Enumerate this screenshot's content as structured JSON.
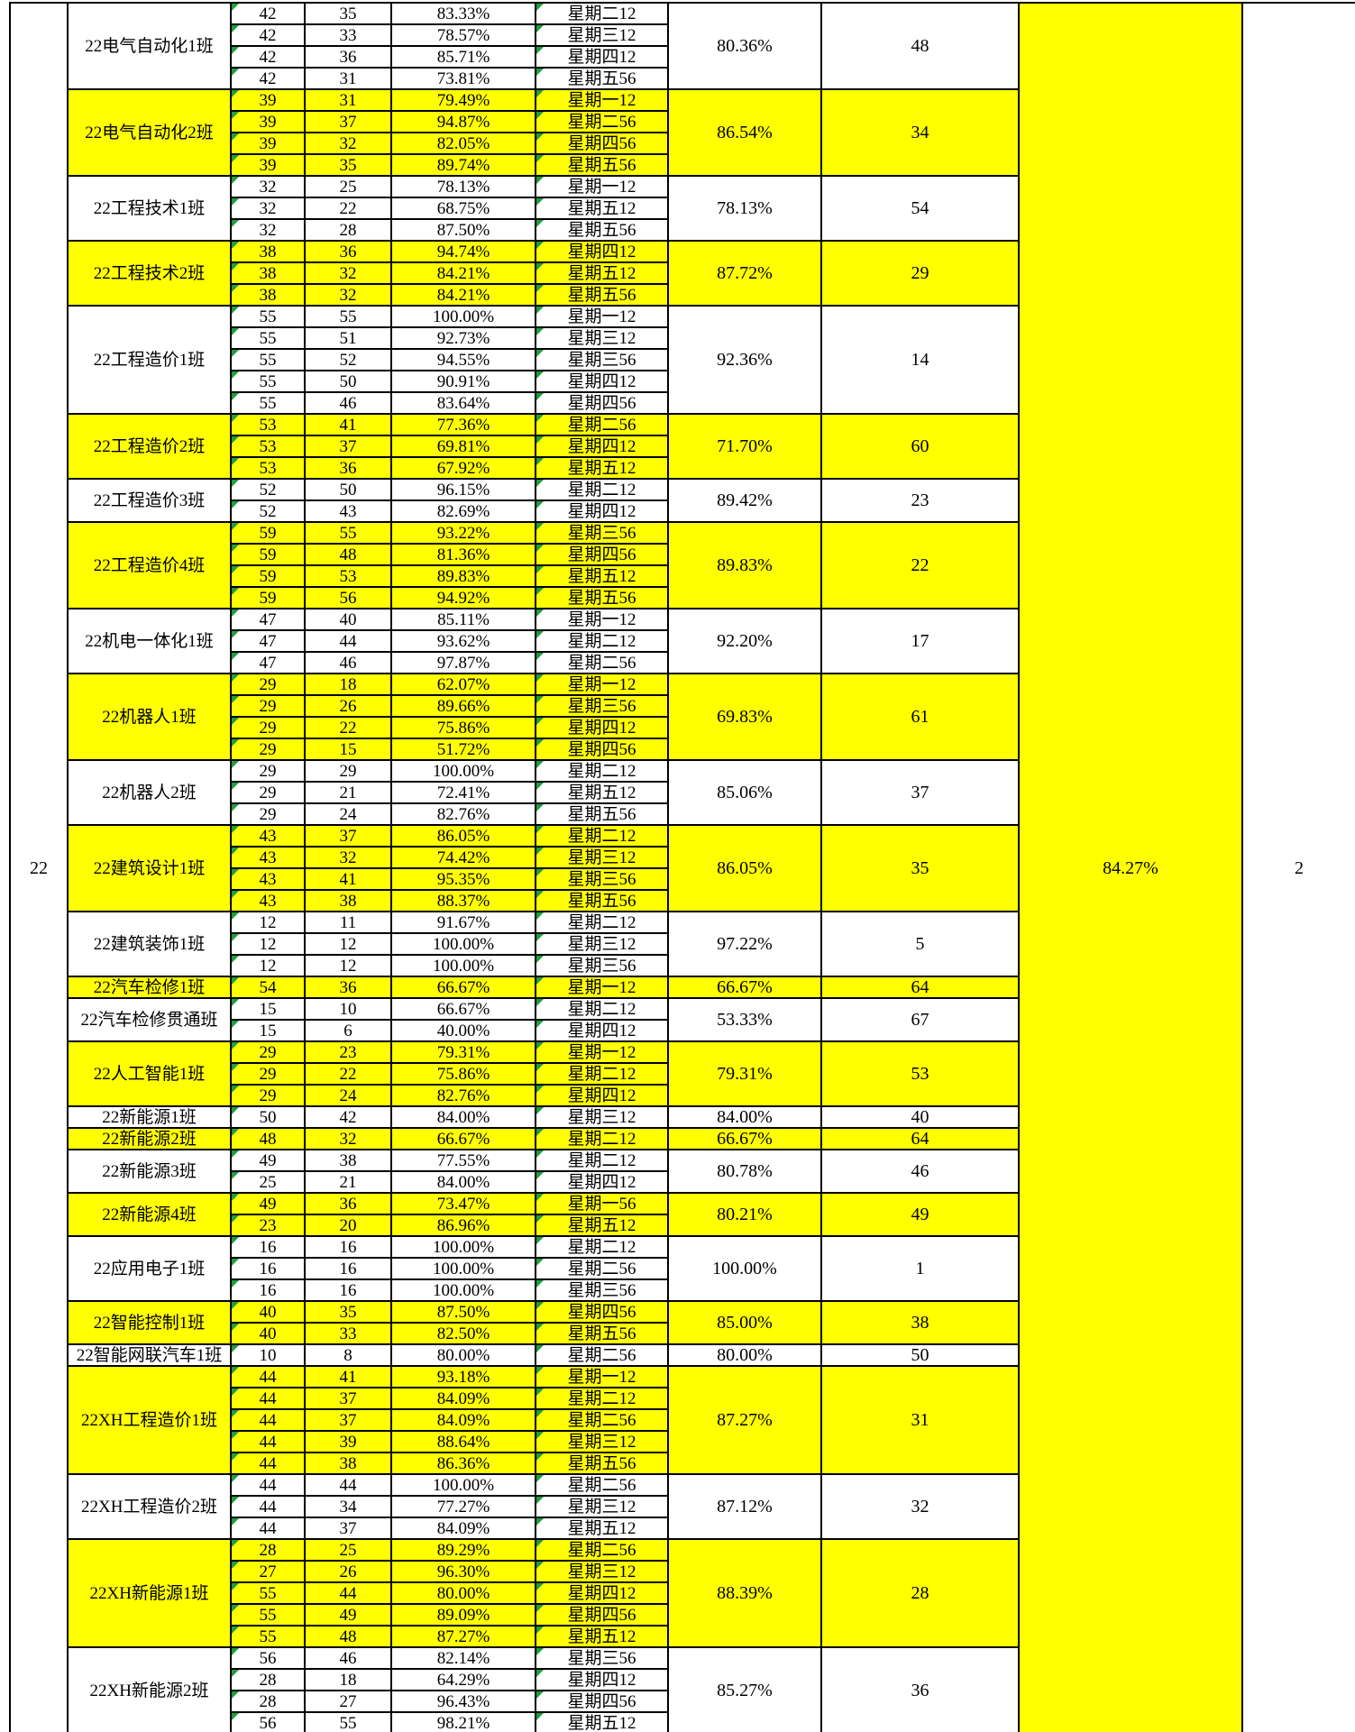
{
  "colors": {
    "highlight": "#FFFF00",
    "grid_line": "#000000",
    "error_indicator": "#1F9D40",
    "text": "#000000",
    "background": "#FFFFFF"
  },
  "grade_row": {
    "grade": "22",
    "grade_avg": "84.27%",
    "grade_rank": "2"
  },
  "table": {
    "blocks": [
      {
        "class": "22电气自动化1班",
        "highlighted": false,
        "avg": "80.36%",
        "rank": "48",
        "sessions": [
          {
            "total": "42",
            "attended": "35",
            "rate": "83.33%",
            "slot": "星期二12"
          },
          {
            "total": "42",
            "attended": "33",
            "rate": "78.57%",
            "slot": "星期三12"
          },
          {
            "total": "42",
            "attended": "36",
            "rate": "85.71%",
            "slot": "星期四12"
          },
          {
            "total": "42",
            "attended": "31",
            "rate": "73.81%",
            "slot": "星期五56"
          }
        ]
      },
      {
        "class": "22电气自动化2班",
        "highlighted": true,
        "avg": "86.54%",
        "rank": "34",
        "sessions": [
          {
            "total": "39",
            "attended": "31",
            "rate": "79.49%",
            "slot": "星期一12"
          },
          {
            "total": "39",
            "attended": "37",
            "rate": "94.87%",
            "slot": "星期二56"
          },
          {
            "total": "39",
            "attended": "32",
            "rate": "82.05%",
            "slot": "星期四56"
          },
          {
            "total": "39",
            "attended": "35",
            "rate": "89.74%",
            "slot": "星期五56"
          }
        ]
      },
      {
        "class": "22工程技术1班",
        "highlighted": false,
        "avg": "78.13%",
        "rank": "54",
        "sessions": [
          {
            "total": "32",
            "attended": "25",
            "rate": "78.13%",
            "slot": "星期一12"
          },
          {
            "total": "32",
            "attended": "22",
            "rate": "68.75%",
            "slot": "星期五12"
          },
          {
            "total": "32",
            "attended": "28",
            "rate": "87.50%",
            "slot": "星期五56"
          }
        ]
      },
      {
        "class": "22工程技术2班",
        "highlighted": true,
        "avg": "87.72%",
        "rank": "29",
        "sessions": [
          {
            "total": "38",
            "attended": "36",
            "rate": "94.74%",
            "slot": "星期四12"
          },
          {
            "total": "38",
            "attended": "32",
            "rate": "84.21%",
            "slot": "星期五12"
          },
          {
            "total": "38",
            "attended": "32",
            "rate": "84.21%",
            "slot": "星期五56"
          }
        ]
      },
      {
        "class": "22工程造价1班",
        "highlighted": false,
        "avg": "92.36%",
        "rank": "14",
        "sessions": [
          {
            "total": "55",
            "attended": "55",
            "rate": "100.00%",
            "slot": "星期一12"
          },
          {
            "total": "55",
            "attended": "51",
            "rate": "92.73%",
            "slot": "星期三12"
          },
          {
            "total": "55",
            "attended": "52",
            "rate": "94.55%",
            "slot": "星期三56"
          },
          {
            "total": "55",
            "attended": "50",
            "rate": "90.91%",
            "slot": "星期四12"
          },
          {
            "total": "55",
            "attended": "46",
            "rate": "83.64%",
            "slot": "星期四56"
          }
        ]
      },
      {
        "class": "22工程造价2班",
        "highlighted": true,
        "avg": "71.70%",
        "rank": "60",
        "sessions": [
          {
            "total": "53",
            "attended": "41",
            "rate": "77.36%",
            "slot": "星期二56"
          },
          {
            "total": "53",
            "attended": "37",
            "rate": "69.81%",
            "slot": "星期四12"
          },
          {
            "total": "53",
            "attended": "36",
            "rate": "67.92%",
            "slot": "星期五12"
          }
        ]
      },
      {
        "class": "22工程造价3班",
        "highlighted": false,
        "avg": "89.42%",
        "rank": "23",
        "sessions": [
          {
            "total": "52",
            "attended": "50",
            "rate": "96.15%",
            "slot": "星期二12"
          },
          {
            "total": "52",
            "attended": "43",
            "rate": "82.69%",
            "slot": "星期四12"
          }
        ]
      },
      {
        "class": "22工程造价4班",
        "highlighted": true,
        "avg": "89.83%",
        "rank": "22",
        "sessions": [
          {
            "total": "59",
            "attended": "55",
            "rate": "93.22%",
            "slot": "星期三56"
          },
          {
            "total": "59",
            "attended": "48",
            "rate": "81.36%",
            "slot": "星期四56"
          },
          {
            "total": "59",
            "attended": "53",
            "rate": "89.83%",
            "slot": "星期五12"
          },
          {
            "total": "59",
            "attended": "56",
            "rate": "94.92%",
            "slot": "星期五56"
          }
        ]
      },
      {
        "class": "22机电一体化1班",
        "highlighted": false,
        "avg": "92.20%",
        "rank": "17",
        "sessions": [
          {
            "total": "47",
            "attended": "40",
            "rate": "85.11%",
            "slot": "星期一12"
          },
          {
            "total": "47",
            "attended": "44",
            "rate": "93.62%",
            "slot": "星期二12"
          },
          {
            "total": "47",
            "attended": "46",
            "rate": "97.87%",
            "slot": "星期二56"
          }
        ]
      },
      {
        "class": "22机器人1班",
        "highlighted": true,
        "avg": "69.83%",
        "rank": "61",
        "sessions": [
          {
            "total": "29",
            "attended": "18",
            "rate": "62.07%",
            "slot": "星期一12"
          },
          {
            "total": "29",
            "attended": "26",
            "rate": "89.66%",
            "slot": "星期三56"
          },
          {
            "total": "29",
            "attended": "22",
            "rate": "75.86%",
            "slot": "星期四12"
          },
          {
            "total": "29",
            "attended": "15",
            "rate": "51.72%",
            "slot": "星期四56"
          }
        ]
      },
      {
        "class": "22机器人2班",
        "highlighted": false,
        "avg": "85.06%",
        "rank": "37",
        "sessions": [
          {
            "total": "29",
            "attended": "29",
            "rate": "100.00%",
            "slot": "星期二12"
          },
          {
            "total": "29",
            "attended": "21",
            "rate": "72.41%",
            "slot": "星期五12"
          },
          {
            "total": "29",
            "attended": "24",
            "rate": "82.76%",
            "slot": "星期五56"
          }
        ]
      },
      {
        "class": "22建筑设计1班",
        "highlighted": true,
        "avg": "86.05%",
        "rank": "35",
        "sessions": [
          {
            "total": "43",
            "attended": "37",
            "rate": "86.05%",
            "slot": "星期二12"
          },
          {
            "total": "43",
            "attended": "32",
            "rate": "74.42%",
            "slot": "星期三12"
          },
          {
            "total": "43",
            "attended": "41",
            "rate": "95.35%",
            "slot": "星期三56"
          },
          {
            "total": "43",
            "attended": "38",
            "rate": "88.37%",
            "slot": "星期五56"
          }
        ]
      },
      {
        "class": "22建筑装饰1班",
        "highlighted": false,
        "avg": "97.22%",
        "rank": "5",
        "sessions": [
          {
            "total": "12",
            "attended": "11",
            "rate": "91.67%",
            "slot": "星期二12"
          },
          {
            "total": "12",
            "attended": "12",
            "rate": "100.00%",
            "slot": "星期三12"
          },
          {
            "total": "12",
            "attended": "12",
            "rate": "100.00%",
            "slot": "星期三56"
          }
        ]
      },
      {
        "class": "22汽车检修1班",
        "highlighted": true,
        "avg": "66.67%",
        "rank": "64",
        "sessions": [
          {
            "total": "54",
            "attended": "36",
            "rate": "66.67%",
            "slot": "星期一12"
          }
        ]
      },
      {
        "class": "22汽车检修贯通班",
        "highlighted": false,
        "avg": "53.33%",
        "rank": "67",
        "sessions": [
          {
            "total": "15",
            "attended": "10",
            "rate": "66.67%",
            "slot": "星期二12"
          },
          {
            "total": "15",
            "attended": "6",
            "rate": "40.00%",
            "slot": "星期四12"
          }
        ]
      },
      {
        "class": "22人工智能1班",
        "highlighted": true,
        "avg": "79.31%",
        "rank": "53",
        "sessions": [
          {
            "total": "29",
            "attended": "23",
            "rate": "79.31%",
            "slot": "星期一12"
          },
          {
            "total": "29",
            "attended": "22",
            "rate": "75.86%",
            "slot": "星期二12"
          },
          {
            "total": "29",
            "attended": "24",
            "rate": "82.76%",
            "slot": "星期四12"
          }
        ]
      },
      {
        "class": "22新能源1班",
        "highlighted": false,
        "avg": "84.00%",
        "rank": "40",
        "sessions": [
          {
            "total": "50",
            "attended": "42",
            "rate": "84.00%",
            "slot": "星期三12"
          }
        ]
      },
      {
        "class": "22新能源2班",
        "highlighted": true,
        "avg": "66.67%",
        "rank": "64",
        "sessions": [
          {
            "total": "48",
            "attended": "32",
            "rate": "66.67%",
            "slot": "星期二12"
          }
        ]
      },
      {
        "class": "22新能源3班",
        "highlighted": false,
        "avg": "80.78%",
        "rank": "46",
        "sessions": [
          {
            "total": "49",
            "attended": "38",
            "rate": "77.55%",
            "slot": "星期二12"
          },
          {
            "total": "25",
            "attended": "21",
            "rate": "84.00%",
            "slot": "星期四12"
          }
        ]
      },
      {
        "class": "22新能源4班",
        "highlighted": true,
        "avg": "80.21%",
        "rank": "49",
        "sessions": [
          {
            "total": "49",
            "attended": "36",
            "rate": "73.47%",
            "slot": "星期一56"
          },
          {
            "total": "23",
            "attended": "20",
            "rate": "86.96%",
            "slot": "星期五12"
          }
        ]
      },
      {
        "class": "22应用电子1班",
        "highlighted": false,
        "avg": "100.00%",
        "rank": "1",
        "sessions": [
          {
            "total": "16",
            "attended": "16",
            "rate": "100.00%",
            "slot": "星期二12"
          },
          {
            "total": "16",
            "attended": "16",
            "rate": "100.00%",
            "slot": "星期二56"
          },
          {
            "total": "16",
            "attended": "16",
            "rate": "100.00%",
            "slot": "星期三56"
          }
        ]
      },
      {
        "class": "22智能控制1班",
        "highlighted": true,
        "avg": "85.00%",
        "rank": "38",
        "sessions": [
          {
            "total": "40",
            "attended": "35",
            "rate": "87.50%",
            "slot": "星期四56"
          },
          {
            "total": "40",
            "attended": "33",
            "rate": "82.50%",
            "slot": "星期五56"
          }
        ]
      },
      {
        "class": "22智能网联汽车1班",
        "highlighted": false,
        "avg": "80.00%",
        "rank": "50",
        "sessions": [
          {
            "total": "10",
            "attended": "8",
            "rate": "80.00%",
            "slot": "星期二56"
          }
        ]
      },
      {
        "class": "22XH工程造价1班",
        "highlighted": true,
        "avg": "87.27%",
        "rank": "31",
        "sessions": [
          {
            "total": "44",
            "attended": "41",
            "rate": "93.18%",
            "slot": "星期一12"
          },
          {
            "total": "44",
            "attended": "37",
            "rate": "84.09%",
            "slot": "星期二12"
          },
          {
            "total": "44",
            "attended": "37",
            "rate": "84.09%",
            "slot": "星期二56"
          },
          {
            "total": "44",
            "attended": "39",
            "rate": "88.64%",
            "slot": "星期三12"
          },
          {
            "total": "44",
            "attended": "38",
            "rate": "86.36%",
            "slot": "星期五56"
          }
        ]
      },
      {
        "class": "22XH工程造价2班",
        "highlighted": false,
        "avg": "87.12%",
        "rank": "32",
        "sessions": [
          {
            "total": "44",
            "attended": "44",
            "rate": "100.00%",
            "slot": "星期二56"
          },
          {
            "total": "44",
            "attended": "34",
            "rate": "77.27%",
            "slot": "星期三12"
          },
          {
            "total": "44",
            "attended": "37",
            "rate": "84.09%",
            "slot": "星期五12"
          }
        ]
      },
      {
        "class": "22XH新能源1班",
        "highlighted": true,
        "avg": "88.39%",
        "rank": "28",
        "sessions": [
          {
            "total": "28",
            "attended": "25",
            "rate": "89.29%",
            "slot": "星期二56"
          },
          {
            "total": "27",
            "attended": "26",
            "rate": "96.30%",
            "slot": "星期三12"
          },
          {
            "total": "55",
            "attended": "44",
            "rate": "80.00%",
            "slot": "星期四12"
          },
          {
            "total": "55",
            "attended": "49",
            "rate": "89.09%",
            "slot": "星期四56"
          },
          {
            "total": "55",
            "attended": "48",
            "rate": "87.27%",
            "slot": "星期五12"
          }
        ]
      },
      {
        "class": "22XH新能源2班",
        "highlighted": false,
        "avg": "85.27%",
        "rank": "36",
        "sessions": [
          {
            "total": "56",
            "attended": "46",
            "rate": "82.14%",
            "slot": "星期三56"
          },
          {
            "total": "28",
            "attended": "18",
            "rate": "64.29%",
            "slot": "星期四12"
          },
          {
            "total": "28",
            "attended": "27",
            "rate": "96.43%",
            "slot": "星期四56"
          },
          {
            "total": "56",
            "attended": "55",
            "rate": "98.21%",
            "slot": "星期五12"
          }
        ]
      }
    ]
  }
}
